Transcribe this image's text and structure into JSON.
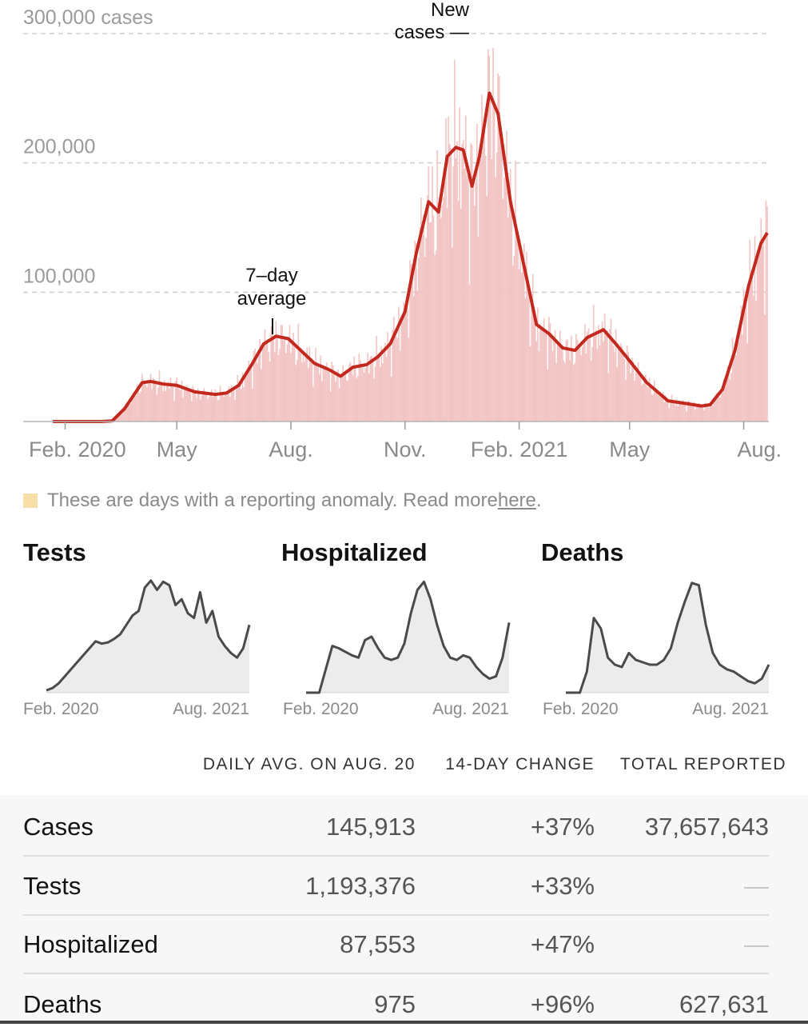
{
  "chart_data": [
    {
      "type": "bar",
      "title": "",
      "ylim": [
        0,
        300000
      ],
      "y_ticks": [
        "300,000 cases",
        "200,000",
        "100,000"
      ],
      "y_tick_values": [
        300000,
        200000,
        100000
      ],
      "x_tick_labels": [
        "Feb. 2020",
        "May",
        "Aug.",
        "Nov.",
        "Feb. 2021",
        "May",
        "Aug."
      ],
      "x_tick_dates": [
        "2020-02-01",
        "2020-05-01",
        "2020-08-01",
        "2020-11-01",
        "2021-02-01",
        "2021-05-01",
        "2021-08-01"
      ],
      "x_range": [
        "2020-01-22",
        "2021-08-20"
      ],
      "grid": true,
      "annotations": {
        "bars": "New\ncases —",
        "line": "7–day\naverage"
      },
      "series": [
        {
          "type": "line",
          "points": [
            [
              "2020-01-22",
              0
            ],
            [
              "2020-03-01",
              0
            ],
            [
              "2020-03-10",
              500
            ],
            [
              "2020-03-20",
              10000
            ],
            [
              "2020-04-03",
              30000
            ],
            [
              "2020-04-10",
              31000
            ],
            [
              "2020-04-20",
              29000
            ],
            [
              "2020-05-01",
              28000
            ],
            [
              "2020-05-15",
              23000
            ],
            [
              "2020-06-01",
              21000
            ],
            [
              "2020-06-10",
              22000
            ],
            [
              "2020-06-20",
              28000
            ],
            [
              "2020-07-01",
              45000
            ],
            [
              "2020-07-10",
              60000
            ],
            [
              "2020-07-20",
              66000
            ],
            [
              "2020-07-30",
              64000
            ],
            [
              "2020-08-10",
              54000
            ],
            [
              "2020-08-20",
              45000
            ],
            [
              "2020-09-01",
              40000
            ],
            [
              "2020-09-10",
              35000
            ],
            [
              "2020-09-20",
              42000
            ],
            [
              "2020-10-01",
              44000
            ],
            [
              "2020-10-10",
              50000
            ],
            [
              "2020-10-20",
              60000
            ],
            [
              "2020-11-01",
              85000
            ],
            [
              "2020-11-10",
              130000
            ],
            [
              "2020-11-20",
              170000
            ],
            [
              "2020-11-28",
              162000
            ],
            [
              "2020-12-05",
              205000
            ],
            [
              "2020-12-12",
              212000
            ],
            [
              "2020-12-18",
              210000
            ],
            [
              "2020-12-25",
              182000
            ],
            [
              "2020-12-31",
              205000
            ],
            [
              "2021-01-08",
              254000
            ],
            [
              "2021-01-15",
              238000
            ],
            [
              "2021-01-25",
              170000
            ],
            [
              "2021-02-05",
              120000
            ],
            [
              "2021-02-15",
              75000
            ],
            [
              "2021-02-25",
              68000
            ],
            [
              "2021-03-08",
              57000
            ],
            [
              "2021-03-18",
              55000
            ],
            [
              "2021-03-28",
              65000
            ],
            [
              "2021-04-10",
              71000
            ],
            [
              "2021-04-20",
              60000
            ],
            [
              "2021-05-01",
              47000
            ],
            [
              "2021-05-15",
              30000
            ],
            [
              "2021-06-01",
              16000
            ],
            [
              "2021-06-15",
              14000
            ],
            [
              "2021-06-28",
              12000
            ],
            [
              "2021-07-05",
              13000
            ],
            [
              "2021-07-15",
              25000
            ],
            [
              "2021-07-25",
              55000
            ],
            [
              "2021-08-05",
              105000
            ],
            [
              "2021-08-15",
              138000
            ],
            [
              "2021-08-20",
              145913
            ]
          ]
        }
      ]
    },
    {
      "type": "area",
      "title": "Tests",
      "x_tick_labels": [
        "Feb. 2020",
        "Aug. 2021"
      ],
      "values": [
        2,
        4,
        8,
        14,
        20,
        26,
        32,
        38,
        44,
        42,
        43,
        46,
        50,
        58,
        66,
        70,
        90,
        96,
        88,
        95,
        92,
        75,
        80,
        68,
        64,
        86,
        60,
        70,
        48,
        40,
        34,
        30,
        38,
        58
      ]
    },
    {
      "type": "area",
      "title": "Hospitalized",
      "x_tick_labels": [
        "Feb. 2020",
        "Aug. 2021"
      ],
      "values": [
        0,
        0,
        0,
        20,
        40,
        38,
        35,
        32,
        30,
        45,
        48,
        38,
        30,
        28,
        30,
        42,
        68,
        88,
        95,
        80,
        58,
        40,
        30,
        28,
        32,
        30,
        22,
        16,
        12,
        14,
        30,
        60
      ]
    },
    {
      "type": "area",
      "title": "Deaths",
      "x_tick_labels": [
        "Feb. 2020",
        "Aug. 2021"
      ],
      "values": [
        0,
        0,
        0,
        18,
        64,
        55,
        30,
        24,
        22,
        34,
        28,
        26,
        24,
        24,
        28,
        38,
        60,
        78,
        94,
        92,
        58,
        34,
        24,
        20,
        18,
        14,
        10,
        8,
        12,
        24
      ]
    }
  ],
  "legend": {
    "text": "These are days with a reporting anomaly. Read more ",
    "link": "here",
    "end": "."
  },
  "table": {
    "headers": [
      "DAILY AVG. ON AUG. 20",
      "14-DAY CHANGE",
      "TOTAL REPORTED"
    ],
    "rows": [
      {
        "label": "Cases",
        "daily": "145,913",
        "change": "+37%",
        "total": "37,657,643"
      },
      {
        "label": "Tests",
        "daily": "1,193,376",
        "change": "+33%",
        "total": "—"
      },
      {
        "label": "Hospitalized",
        "daily": "87,553",
        "change": "+47%",
        "total": "—"
      },
      {
        "label": "Deaths",
        "daily": "975",
        "change": "+96%",
        "total": "627,631"
      }
    ]
  },
  "colors": {
    "line": "#c2281d",
    "bars": "#f2c4c4",
    "anomaly": "#f8dfa8",
    "small_line": "#4a4a4a",
    "small_fill": "#ececec"
  }
}
